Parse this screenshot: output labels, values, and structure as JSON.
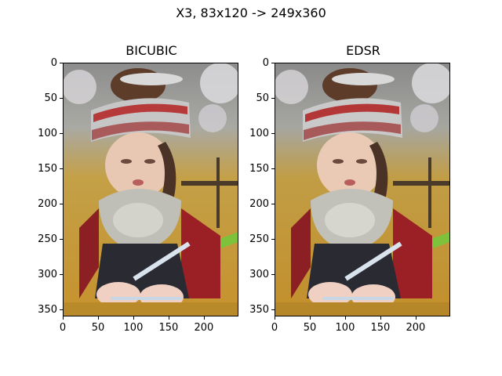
{
  "figure": {
    "suptitle": "X3, 83x120 -> 249x360"
  },
  "panels": [
    {
      "title": "BICUBIC",
      "image": {
        "description_name": "girl-traditional-headdress-upscaled-bicubic"
      },
      "x_ticks": [
        "0",
        "50",
        "100",
        "150",
        "200"
      ],
      "y_ticks": [
        "0",
        "50",
        "100",
        "150",
        "200",
        "250",
        "300",
        "350"
      ]
    },
    {
      "title": "EDSR",
      "image": {
        "description_name": "girl-traditional-headdress-upscaled-edsr"
      },
      "x_ticks": [
        "0",
        "50",
        "100",
        "150",
        "200"
      ],
      "y_ticks": [
        "0",
        "50",
        "100",
        "150",
        "200",
        "250",
        "300",
        "350"
      ]
    }
  ]
}
